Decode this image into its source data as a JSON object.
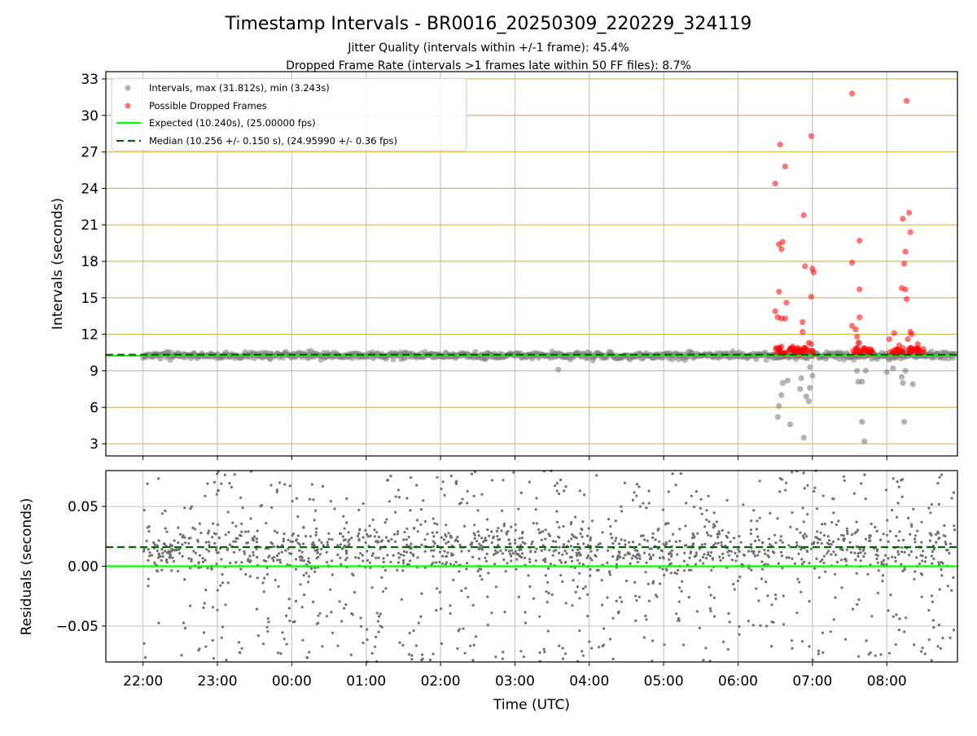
{
  "figure": {
    "title": "Timestamp Intervals - BR0016_20250309_220229_324119",
    "subtitle_1": "Jitter Quality (intervals within +/-1 frame): 45.4%",
    "subtitle_2": "Dropped Frame Rate (intervals >1 frames late within 50 FF files): 8.7%"
  },
  "legend": {
    "intervals": "Intervals, max (31.812s), min (3.243s)",
    "dropped": "Possible Dropped Frames",
    "expected": "Expected (10.240s), (25.00000 fps)",
    "median": "Median (10.256 +/- 0.150 s), (24.95990 +/- 0.36 fps)"
  },
  "colors": {
    "intervals": "#808080",
    "dropped": "#ff0000",
    "expected": "#00ff00",
    "median": "#006400",
    "hgrid_top": "#d4b860",
    "grid": "#c8c8c8"
  },
  "chart_data": [
    {
      "type": "scatter",
      "ylabel": "Intervals (seconds)",
      "ylim": [
        2,
        33.6
      ],
      "yticks": [
        "3",
        "6",
        "9",
        "12",
        "15",
        "18",
        "21",
        "24",
        "27",
        "30",
        "33"
      ],
      "xlim_hours": [
        21.5,
        32.95
      ],
      "legend_position": "top-left",
      "series": [
        {
          "name": "Intervals, max (31.812s), min (3.243s)",
          "baseline": 10.26,
          "spread": 0.15,
          "x_range": [
            "22:00",
            "08:55"
          ],
          "outliers": [
            {
              "x": "06:32",
              "y": 5.2
            },
            {
              "x": "06:33",
              "y": 6.1
            },
            {
              "x": "06:35",
              "y": 7.0
            },
            {
              "x": "06:36",
              "y": 8.0
            },
            {
              "x": "06:40",
              "y": 8.2
            },
            {
              "x": "06:42",
              "y": 4.6
            },
            {
              "x": "06:50",
              "y": 7.5
            },
            {
              "x": "06:51",
              "y": 8.4
            },
            {
              "x": "06:53",
              "y": 3.5
            },
            {
              "x": "06:55",
              "y": 6.9
            },
            {
              "x": "06:57",
              "y": 6.5
            },
            {
              "x": "06:58",
              "y": 7.6
            },
            {
              "x": "06:58",
              "y": 9.3
            },
            {
              "x": "07:00",
              "y": 8.6
            },
            {
              "x": "07:36",
              "y": 9.0
            },
            {
              "x": "07:37",
              "y": 8.1
            },
            {
              "x": "07:38",
              "y": 11.3
            },
            {
              "x": "07:40",
              "y": 8.1
            },
            {
              "x": "07:40",
              "y": 4.8
            },
            {
              "x": "07:42",
              "y": 3.2
            },
            {
              "x": "07:43",
              "y": 9.0
            },
            {
              "x": "08:00",
              "y": 8.9
            },
            {
              "x": "08:05",
              "y": 9.2
            },
            {
              "x": "08:12",
              "y": 8.5
            },
            {
              "x": "08:13",
              "y": 8.0
            },
            {
              "x": "08:14",
              "y": 4.8
            },
            {
              "x": "08:15",
              "y": 9.0
            },
            {
              "x": "08:21",
              "y": 7.9
            },
            {
              "x": "03:35",
              "y": 9.1
            }
          ]
        },
        {
          "name": "Possible Dropped Frames",
          "points": [
            {
              "x": "06:30",
              "y": 24.4
            },
            {
              "x": "06:34",
              "y": 27.6
            },
            {
              "x": "06:38",
              "y": 25.8
            },
            {
              "x": "06:33",
              "y": 19.4
            },
            {
              "x": "06:35",
              "y": 19.0
            },
            {
              "x": "06:36",
              "y": 19.6
            },
            {
              "x": "06:33",
              "y": 15.5
            },
            {
              "x": "06:30",
              "y": 13.9
            },
            {
              "x": "06:32",
              "y": 13.4
            },
            {
              "x": "06:35",
              "y": 13.3
            },
            {
              "x": "06:39",
              "y": 14.6
            },
            {
              "x": "06:38",
              "y": 13.3
            },
            {
              "x": "06:53",
              "y": 21.8
            },
            {
              "x": "06:54",
              "y": 17.6
            },
            {
              "x": "06:52",
              "y": 13.0
            },
            {
              "x": "06:52",
              "y": 12.2
            },
            {
              "x": "06:59",
              "y": 28.3
            },
            {
              "x": "06:59",
              "y": 15.1
            },
            {
              "x": "07:00",
              "y": 17.4
            },
            {
              "x": "07:01",
              "y": 17.1
            },
            {
              "x": "06:57",
              "y": 11.3
            },
            {
              "x": "06:59",
              "y": 11.2
            },
            {
              "x": "06:35",
              "y": 11.0
            },
            {
              "x": "06:44",
              "y": 11.0
            },
            {
              "x": "06:48",
              "y": 10.9
            },
            {
              "x": "07:32",
              "y": 31.8
            },
            {
              "x": "07:38",
              "y": 19.7
            },
            {
              "x": "07:32",
              "y": 17.9
            },
            {
              "x": "07:38",
              "y": 15.7
            },
            {
              "x": "07:38",
              "y": 13.4
            },
            {
              "x": "07:35",
              "y": 12.4
            },
            {
              "x": "07:32",
              "y": 12.7
            },
            {
              "x": "07:36",
              "y": 11.8
            },
            {
              "x": "07:37",
              "y": 11.3
            },
            {
              "x": "07:48",
              "y": 10.6
            },
            {
              "x": "08:16",
              "y": 31.2
            },
            {
              "x": "08:18",
              "y": 22.0
            },
            {
              "x": "08:13",
              "y": 21.5
            },
            {
              "x": "08:19",
              "y": 20.4
            },
            {
              "x": "08:15",
              "y": 18.8
            },
            {
              "x": "08:14",
              "y": 17.8
            },
            {
              "x": "08:12",
              "y": 15.8
            },
            {
              "x": "08:15",
              "y": 15.7
            },
            {
              "x": "08:16",
              "y": 14.9
            },
            {
              "x": "08:02",
              "y": 11.6
            },
            {
              "x": "08:06",
              "y": 12.1
            },
            {
              "x": "08:19",
              "y": 12.2
            },
            {
              "x": "08:20",
              "y": 12.0
            },
            {
              "x": "08:17",
              "y": 11.6
            },
            {
              "x": "08:25",
              "y": 11.2
            },
            {
              "x": "08:10",
              "y": 11.1
            }
          ],
          "clusters": [
            {
              "from": "06:30",
              "to": "07:02",
              "ymin": 10.3,
              "ymax": 10.9
            },
            {
              "from": "07:32",
              "to": "07:48",
              "ymin": 10.3,
              "ymax": 10.9
            },
            {
              "from": "08:02",
              "to": "08:30",
              "ymin": 10.3,
              "ymax": 10.9
            }
          ]
        },
        {
          "name": "Expected (10.240s), (25.00000 fps)",
          "type": "hline",
          "y": 10.24
        },
        {
          "name": "Median (10.256 +/- 0.150 s), (24.95990 +/- 0.36 fps)",
          "type": "hline-dashed",
          "y": 10.256
        }
      ]
    },
    {
      "type": "scatter",
      "xlabel": "Time (UTC)",
      "ylabel": "Residuals (seconds)",
      "ylim": [
        -0.08,
        0.08
      ],
      "yticks": [
        "−0.05",
        "0.00",
        "0.05"
      ],
      "xticks": [
        "22:00",
        "23:00",
        "00:00",
        "01:00",
        "02:00",
        "03:00",
        "04:00",
        "05:00",
        "06:00",
        "07:00",
        "08:00"
      ],
      "xlim_hours": [
        21.5,
        32.95
      ],
      "series": [
        {
          "name": "",
          "x_range": [
            "22:00",
            "08:55"
          ],
          "y_range": [
            -0.08,
            0.08
          ],
          "dense_band": [
            0.0,
            0.03
          ]
        },
        {
          "name": "",
          "type": "hline",
          "y": 0.0
        },
        {
          "name": "",
          "type": "hline-dashed",
          "y": 0.016
        }
      ]
    }
  ]
}
